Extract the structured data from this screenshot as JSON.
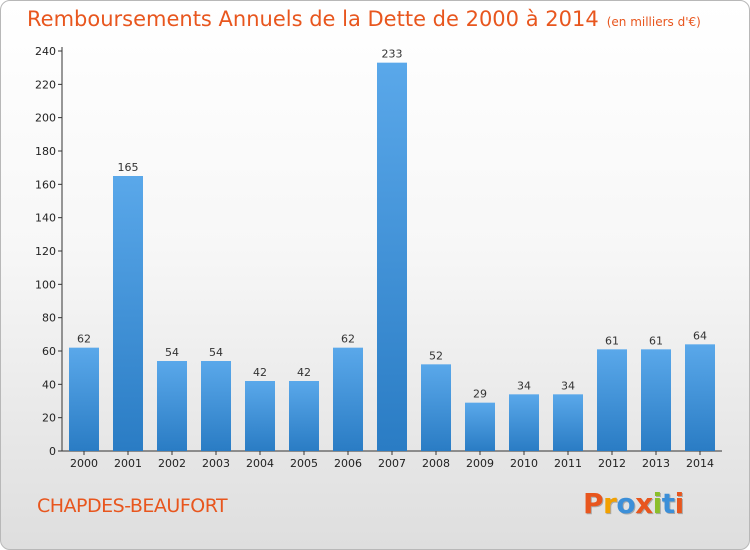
{
  "header": {
    "title": "Remboursements Annuels de la Dette de 2000 à 2014",
    "unit": "(en milliers d'€)"
  },
  "footer": {
    "commune": "CHAPDES-BEAUFORT",
    "logo_text": "Proxiti",
    "logo_colors": [
      "#e8561e",
      "#f2a000",
      "#3c8fd8",
      "#e8561e",
      "#8bbf2a",
      "#3c8fd8",
      "#e8561e"
    ]
  },
  "colors": {
    "title": "#e8561e",
    "bar_light": "#5aa8ea",
    "bar_dark": "#2a7cc4",
    "axis": "#333333"
  },
  "chart_data": {
    "type": "bar",
    "title": "Remboursements Annuels de la Dette de 2000 à 2014",
    "subtitle": "(en milliers d'€)",
    "categories": [
      "2000",
      "2001",
      "2002",
      "2003",
      "2004",
      "2005",
      "2006",
      "2007",
      "2008",
      "2009",
      "2010",
      "2011",
      "2012",
      "2013",
      "2014"
    ],
    "values": [
      62,
      165,
      54,
      54,
      42,
      42,
      62,
      233,
      52,
      29,
      34,
      34,
      61,
      61,
      64
    ],
    "ylim": [
      0,
      240
    ],
    "yticks": [
      0,
      20,
      40,
      60,
      80,
      100,
      120,
      140,
      160,
      180,
      200,
      220,
      240
    ],
    "grid": false,
    "data_labels": true
  }
}
